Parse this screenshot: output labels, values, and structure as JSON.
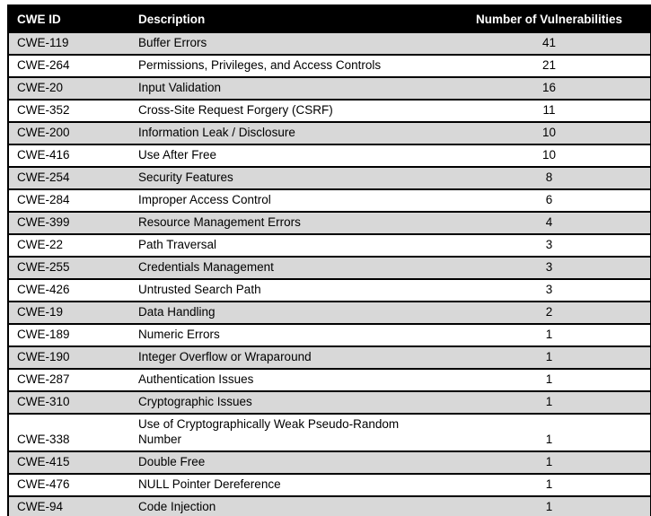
{
  "table": {
    "headers": {
      "id": "CWE ID",
      "description": "Description",
      "count": "Number of Vulnerabilities"
    },
    "rows": [
      {
        "id": "CWE-119",
        "description": "Buffer Errors",
        "count": "41"
      },
      {
        "id": "CWE-264",
        "description": "Permissions, Privileges, and Access Controls",
        "count": "21"
      },
      {
        "id": "CWE-20",
        "description": "Input Validation",
        "count": "16"
      },
      {
        "id": "CWE-352",
        "description": "Cross-Site Request Forgery (CSRF)",
        "count": "11"
      },
      {
        "id": "CWE-200",
        "description": "Information Leak / Disclosure",
        "count": "10"
      },
      {
        "id": "CWE-416",
        "description": "Use After Free",
        "count": "10"
      },
      {
        "id": "CWE-254",
        "description": "Security Features",
        "count": "8"
      },
      {
        "id": "CWE-284",
        "description": "Improper Access Control",
        "count": "6"
      },
      {
        "id": "CWE-399",
        "description": "Resource Management Errors",
        "count": "4"
      },
      {
        "id": "CWE-22",
        "description": "Path Traversal",
        "count": "3"
      },
      {
        "id": "CWE-255",
        "description": "Credentials Management",
        "count": "3"
      },
      {
        "id": "CWE-426",
        "description": "Untrusted Search Path",
        "count": "3"
      },
      {
        "id": "CWE-19",
        "description": "Data Handling",
        "count": "2"
      },
      {
        "id": "CWE-189",
        "description": "Numeric Errors",
        "count": "1"
      },
      {
        "id": "CWE-190",
        "description": "Integer Overflow or Wraparound",
        "count": "1"
      },
      {
        "id": "CWE-287",
        "description": "Authentication Issues",
        "count": "1"
      },
      {
        "id": "CWE-310",
        "description": "Cryptographic Issues",
        "count": "1"
      },
      {
        "id": "CWE-338",
        "description": "Use of Cryptographically Weak Pseudo-Random\nNumber",
        "count": "1"
      },
      {
        "id": "CWE-415",
        "description": "Double Free",
        "count": "1"
      },
      {
        "id": "CWE-476",
        "description": "NULL Pointer Dereference",
        "count": "1"
      },
      {
        "id": "CWE-94",
        "description": "Code Injection",
        "count": "1"
      }
    ],
    "colors": {
      "header_bg": "#000000",
      "header_text": "#ffffff",
      "row_alt_bg": "#d8d8d8",
      "row_bg": "#ffffff",
      "border": "#000000"
    }
  }
}
